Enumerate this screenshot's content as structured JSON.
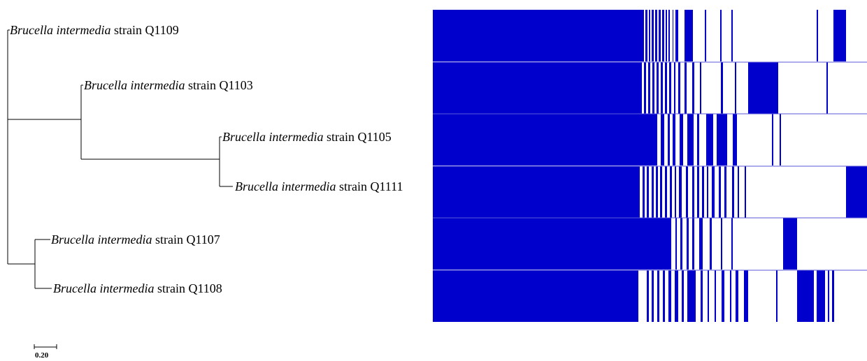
{
  "tree": {
    "leaves": [
      {
        "genus": "Brucella intermedia",
        "rest": " strain Q1109"
      },
      {
        "genus": "Brucella intermedia",
        "rest": " strain Q1103"
      },
      {
        "genus": "Brucella intermedia",
        "rest": " strain Q1105"
      },
      {
        "genus": "Brucella intermedia",
        "rest": " strain Q1111"
      },
      {
        "genus": "Brucella intermedia",
        "rest": " strain Q1107"
      },
      {
        "genus": "Brucella intermedia",
        "rest": " strain Q1108"
      }
    ],
    "scale_bar": {
      "label": "0.20",
      "value": 0.2
    }
  },
  "matrix": {
    "color": "#0000CC",
    "background": "#ffffff",
    "rows": [
      {
        "strain": "Q1109"
      },
      {
        "strain": "Q1103"
      },
      {
        "strain": "Q1105"
      },
      {
        "strain": "Q1111"
      },
      {
        "strain": "Q1107"
      },
      {
        "strain": "Q1108"
      }
    ]
  }
}
